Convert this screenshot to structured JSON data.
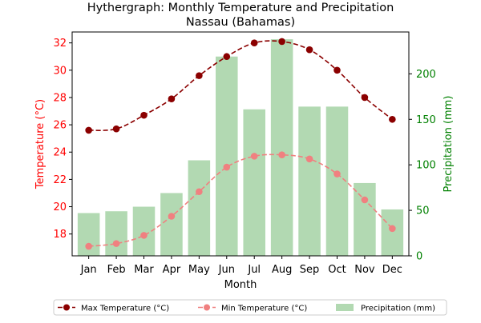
{
  "chart_data": {
    "type": "bar",
    "title_line1": "Hythergraph: Monthly Temperature and Precipitation",
    "title_line2": "Nassau (Bahamas)",
    "xlabel": "Month",
    "ylabel_left": "Temperature (°C)",
    "ylabel_right": "Precipitation (mm)",
    "categories": [
      "Jan",
      "Feb",
      "Mar",
      "Apr",
      "May",
      "Jun",
      "Jul",
      "Aug",
      "Sep",
      "Oct",
      "Nov",
      "Dec"
    ],
    "ylim_left": [
      16.4,
      32.8
    ],
    "ylim_right": [
      0,
      246
    ],
    "yticks_left": [
      18,
      20,
      22,
      24,
      26,
      28,
      30,
      32
    ],
    "yticks_right": [
      0,
      50,
      100,
      150,
      200
    ],
    "series": [
      {
        "name": "Max Temperature (°C)",
        "type": "line",
        "axis": "left",
        "color": "#8b0000",
        "values": [
          25.6,
          25.7,
          26.7,
          27.9,
          29.6,
          31.0,
          32.0,
          32.1,
          31.5,
          30.0,
          28.0,
          26.4
        ]
      },
      {
        "name": "Min Temperature (°C)",
        "type": "line",
        "axis": "left",
        "color": "#f08080",
        "values": [
          17.1,
          17.3,
          17.9,
          19.3,
          21.1,
          22.9,
          23.7,
          23.8,
          23.5,
          22.4,
          20.5,
          18.4
        ]
      },
      {
        "name": "Precipitation (mm)",
        "type": "bar",
        "axis": "right",
        "color": "#b2d9b2",
        "values": [
          47,
          49,
          54,
          69,
          105,
          219,
          161,
          238,
          164,
          164,
          80,
          51
        ]
      }
    ],
    "legend_position": "bottom"
  }
}
